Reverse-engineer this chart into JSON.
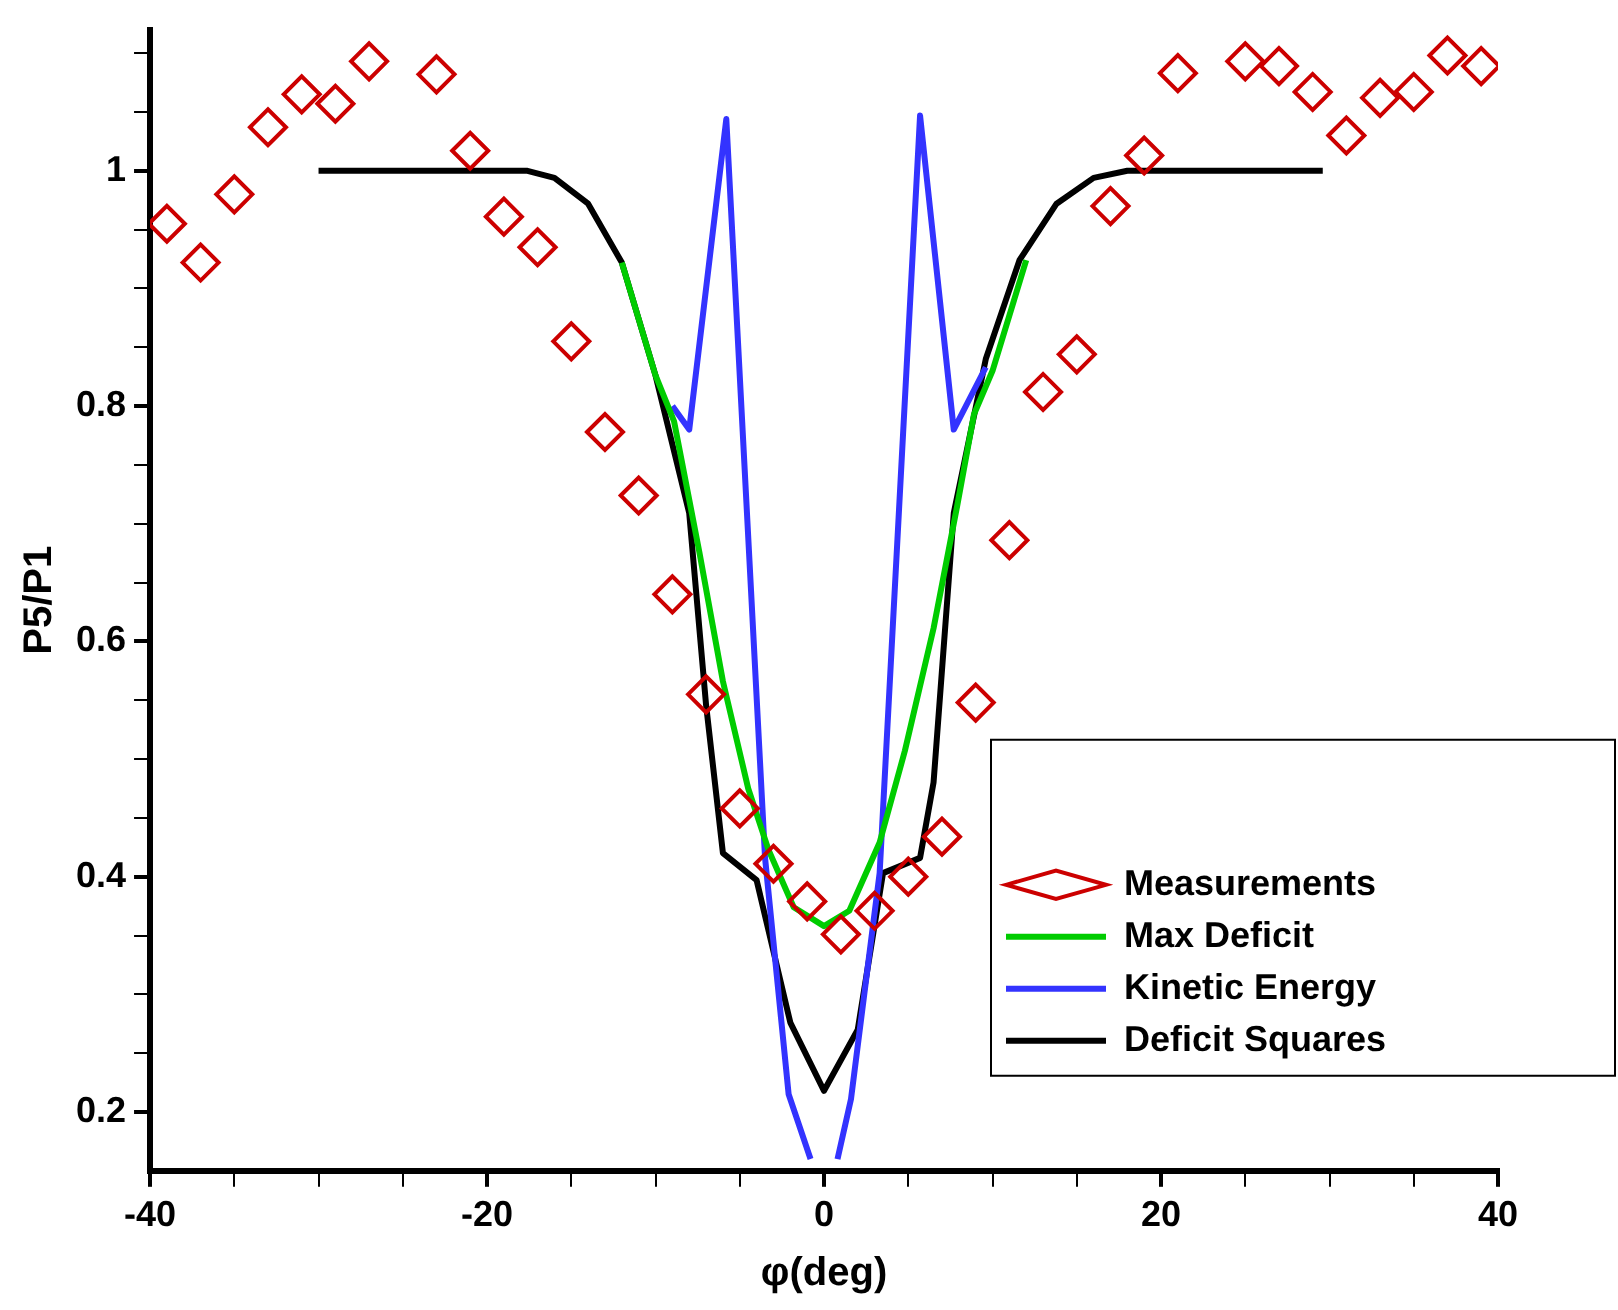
{
  "chart_data": {
    "type": "line",
    "xlabel": "φ(deg)",
    "ylabel": "P5/P1",
    "xlim": [
      -40,
      40
    ],
    "ylim": [
      0.15,
      1.12
    ],
    "xticks": [
      -40,
      {
        "value": -35,
        "label": null
      },
      -20,
      {
        "value": -30,
        "label": null
      },
      {
        "value": -25,
        "label": null
      },
      {
        "value": -15,
        "label": null
      },
      {
        "value": -10,
        "label": null
      },
      {
        "value": -5,
        "label": null
      },
      0,
      {
        "value": 5,
        "label": null
      },
      {
        "value": 10,
        "label": null
      },
      {
        "value": 15,
        "label": null
      },
      20,
      {
        "value": 25,
        "label": null
      },
      {
        "value": 30,
        "label": null
      },
      {
        "value": 35,
        "label": null
      },
      40
    ],
    "yticks": [
      0.2,
      0.4,
      0.6,
      0.8,
      1,
      {
        "value": 0.25,
        "label": null
      },
      {
        "value": 0.3,
        "label": null
      },
      {
        "value": 0.35,
        "label": null
      },
      {
        "value": 0.45,
        "label": null
      },
      {
        "value": 0.5,
        "label": null
      },
      {
        "value": 0.55,
        "label": null
      },
      {
        "value": 0.65,
        "label": null
      },
      {
        "value": 0.7,
        "label": null
      },
      {
        "value": 0.75,
        "label": null
      },
      {
        "value": 0.85,
        "label": null
      },
      {
        "value": 0.9,
        "label": null
      },
      {
        "value": 0.95,
        "label": null
      },
      {
        "value": 1.05,
        "label": null
      },
      {
        "value": 1.1,
        "label": null
      }
    ],
    "grid": false,
    "legend": "bottom right",
    "series": [
      {
        "name": "Max Deficit",
        "marker": "none",
        "line_style": "solid",
        "color": "#00cc00",
        "x": [
          -12,
          -10,
          -8.9,
          -7.4,
          -6,
          -4.5,
          -3.3,
          -1.8,
          0,
          1.5,
          3.3,
          4.8,
          6.5,
          7.9,
          8.9,
          10,
          12
        ],
        "values": [
          0.922,
          0.826,
          0.787,
          0.676,
          0.566,
          0.475,
          0.423,
          0.374,
          0.358,
          0.371,
          0.429,
          0.507,
          0.611,
          0.715,
          0.793,
          0.83,
          0.924
        ]
      },
      {
        "name": "Kinetic Energy",
        "marker": "none",
        "line_style": "solid",
        "color": "#3333ff",
        "x": [
          -9,
          -8,
          -5.8,
          -3.5,
          -2.1,
          -0.8,
          0,
          0.8,
          1.6,
          3.3,
          5.7,
          7.7,
          9.6
        ],
        "values": [
          0.8,
          0.78,
          1.044,
          0.416,
          0.215,
          0.16,
          null,
          0.16,
          0.211,
          0.403,
          1.047,
          0.78,
          0.833
        ]
      },
      {
        "name": "Deficit Squares",
        "marker": "none",
        "line_style": "solid",
        "color": "#000000",
        "x": [
          -30,
          -17.6,
          -16,
          -14,
          -12,
          -10,
          -8,
          -7,
          -6,
          -4,
          -2,
          0,
          2,
          3.5,
          5.7,
          6.5,
          7.7,
          9.6,
          11.6,
          13.8,
          16,
          18,
          29.6
        ],
        "values": [
          1,
          1,
          0.994,
          0.972,
          0.922,
          0.826,
          0.709,
          0.546,
          0.42,
          0.397,
          0.276,
          0.218,
          0.27,
          0.403,
          0.416,
          0.48,
          0.709,
          0.84,
          0.924,
          0.972,
          0.994,
          1,
          1
        ]
      },
      {
        "name": "Measurements",
        "type": "scatter",
        "marker": "diamond",
        "color": "#cc0000",
        "x": [
          -39,
          -37,
          -35,
          -33,
          -31,
          -29,
          -27,
          -23,
          -21,
          -19,
          -17,
          -15,
          -13,
          -11,
          -9,
          -7,
          -5,
          -3,
          -1,
          1,
          3,
          5,
          7,
          9,
          11,
          13,
          15,
          17,
          19,
          21,
          25,
          27,
          29,
          31,
          33,
          35,
          37,
          39
        ],
        "values": [
          0.955,
          0.922,
          0.98,
          1.037,
          1.065,
          1.057,
          1.093,
          1.082,
          1.017,
          0.961,
          0.935,
          0.855,
          0.778,
          0.724,
          0.64,
          0.555,
          0.458,
          0.411,
          0.379,
          0.351,
          0.371,
          0.4,
          0.434,
          0.548,
          0.686,
          0.812,
          0.844,
          0.97,
          1.013,
          1.083,
          1.093,
          1.089,
          1.067,
          1.03,
          1.062,
          1.067,
          1.098,
          1.089
        ]
      }
    ]
  }
}
